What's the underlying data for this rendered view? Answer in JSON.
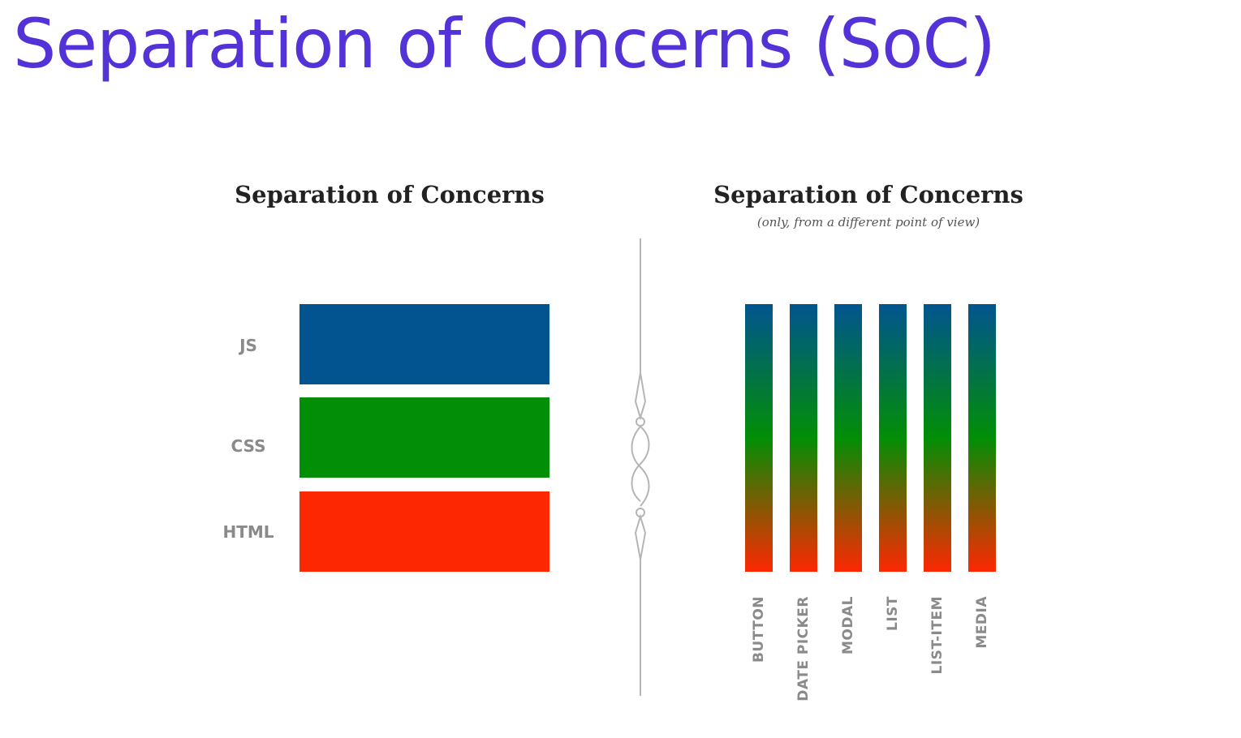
{
  "slide": {
    "title": "Separation of Concerns (SoC)"
  },
  "left_panel": {
    "heading": "Separation of Concerns",
    "layers": [
      {
        "label": "JS",
        "color": "#01548f"
      },
      {
        "label": "CSS",
        "color": "#028e06"
      },
      {
        "label": "HTML",
        "color": "#fd2802"
      }
    ]
  },
  "right_panel": {
    "heading": "Separation of Concerns",
    "subheading": "(only, from a different point of view)",
    "gradient_colors": {
      "top": "#01548f",
      "middle": "#028e06",
      "bottom": "#fd2802"
    },
    "components": [
      {
        "label": "BUTTON"
      },
      {
        "label": "DATE PICKER"
      },
      {
        "label": "MODAL"
      },
      {
        "label": "LIST"
      },
      {
        "label": "LIST-ITEM"
      },
      {
        "label": "MEDIA"
      }
    ]
  },
  "divider": {
    "icon": "ornamental-divider-icon",
    "color": "#b5b5b5"
  }
}
